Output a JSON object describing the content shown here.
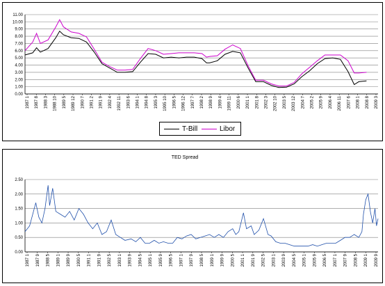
{
  "chart_data": [
    {
      "type": "line",
      "title": "",
      "ylim": [
        0,
        11
      ],
      "y_ticks": [
        "0.00",
        "1.00",
        "2.00",
        "3.00",
        "4.00",
        "5.00",
        "6.00",
        "7.00",
        "8.00",
        "9.00",
        "10.00",
        "11.00"
      ],
      "x_tick_labels": [
        "1987 1",
        "1987 8",
        "1988 3",
        "1988 10",
        "1989 5",
        "1989 12",
        "1990 7",
        "1991 2",
        "1991 9",
        "1992 4",
        "1992 11",
        "1993 6",
        "1994 1",
        "1994 8",
        "1995 3",
        "1995 10",
        "1996 5",
        "1996 12",
        "1997 7",
        "1998 2",
        "1998 9",
        "1999 4",
        "1999 11",
        "2000 6",
        "2001 1",
        "2001 8",
        "2002 3",
        "2002 10",
        "2003 5",
        "2003 12",
        "2004 7",
        "2005 2",
        "2005 9",
        "2006 4",
        "2006 11",
        "2007 6",
        "2008 1",
        "2008 8",
        "2009 3"
      ],
      "legend_position": "bottom",
      "series": [
        {
          "name": "T-Bill",
          "color": "#000000",
          "points": [
            [
              1987.0,
              5.4
            ],
            [
              1987.5,
              5.7
            ],
            [
              1987.75,
              6.4
            ],
            [
              1988.0,
              5.8
            ],
            [
              1988.5,
              6.3
            ],
            [
              1989.0,
              7.8
            ],
            [
              1989.25,
              8.7
            ],
            [
              1989.5,
              8.2
            ],
            [
              1990.0,
              7.8
            ],
            [
              1990.5,
              7.7
            ],
            [
              1991.0,
              7.2
            ],
            [
              1991.5,
              5.8
            ],
            [
              1992.0,
              4.2
            ],
            [
              1992.5,
              3.6
            ],
            [
              1993.0,
              3.0
            ],
            [
              1993.5,
              3.0
            ],
            [
              1994.0,
              3.1
            ],
            [
              1994.5,
              4.4
            ],
            [
              1995.0,
              5.6
            ],
            [
              1995.5,
              5.5
            ],
            [
              1996.0,
              5.0
            ],
            [
              1996.5,
              5.1
            ],
            [
              1997.0,
              5.0
            ],
            [
              1997.5,
              5.1
            ],
            [
              1998.0,
              5.1
            ],
            [
              1998.5,
              4.9
            ],
            [
              1998.8,
              4.3
            ],
            [
              1999.0,
              4.3
            ],
            [
              1999.5,
              4.6
            ],
            [
              2000.0,
              5.5
            ],
            [
              2000.5,
              5.9
            ],
            [
              2001.0,
              5.7
            ],
            [
              2001.5,
              3.6
            ],
            [
              2002.0,
              1.7
            ],
            [
              2002.5,
              1.7
            ],
            [
              2003.0,
              1.2
            ],
            [
              2003.5,
              0.9
            ],
            [
              2004.0,
              0.95
            ],
            [
              2004.5,
              1.4
            ],
            [
              2005.0,
              2.4
            ],
            [
              2005.5,
              3.2
            ],
            [
              2006.0,
              4.2
            ],
            [
              2006.5,
              4.9
            ],
            [
              2007.0,
              5.0
            ],
            [
              2007.5,
              4.8
            ],
            [
              2008.0,
              3.1
            ],
            [
              2008.4,
              1.3
            ],
            [
              2008.7,
              1.7
            ],
            [
              2009.2,
              1.8
            ]
          ]
        },
        {
          "name": "Libor",
          "color": "#cc00cc",
          "points": [
            [
              1987.0,
              6.0
            ],
            [
              1987.5,
              7.2
            ],
            [
              1987.75,
              8.4
            ],
            [
              1988.0,
              7.0
            ],
            [
              1988.5,
              7.5
            ],
            [
              1989.0,
              9.3
            ],
            [
              1989.25,
              10.3
            ],
            [
              1989.5,
              9.3
            ],
            [
              1990.0,
              8.6
            ],
            [
              1990.5,
              8.4
            ],
            [
              1991.0,
              7.9
            ],
            [
              1991.5,
              6.2
            ],
            [
              1992.0,
              4.4
            ],
            [
              1992.5,
              3.8
            ],
            [
              1993.0,
              3.3
            ],
            [
              1993.5,
              3.3
            ],
            [
              1994.0,
              3.4
            ],
            [
              1994.5,
              4.9
            ],
            [
              1995.0,
              6.3
            ],
            [
              1995.5,
              6.0
            ],
            [
              1996.0,
              5.5
            ],
            [
              1996.5,
              5.6
            ],
            [
              1997.0,
              5.7
            ],
            [
              1997.5,
              5.7
            ],
            [
              1998.0,
              5.7
            ],
            [
              1998.5,
              5.6
            ],
            [
              1998.8,
              5.1
            ],
            [
              1999.0,
              5.2
            ],
            [
              1999.5,
              5.3
            ],
            [
              2000.0,
              6.2
            ],
            [
              2000.5,
              6.8
            ],
            [
              2001.0,
              6.3
            ],
            [
              2001.5,
              3.9
            ],
            [
              2002.0,
              1.9
            ],
            [
              2002.5,
              1.9
            ],
            [
              2003.0,
              1.4
            ],
            [
              2003.5,
              1.1
            ],
            [
              2004.0,
              1.1
            ],
            [
              2004.5,
              1.6
            ],
            [
              2005.0,
              2.8
            ],
            [
              2005.5,
              3.7
            ],
            [
              2006.0,
              4.6
            ],
            [
              2006.5,
              5.4
            ],
            [
              2007.0,
              5.4
            ],
            [
              2007.5,
              5.4
            ],
            [
              2008.0,
              4.6
            ],
            [
              2008.4,
              2.9
            ],
            [
              2008.7,
              2.9
            ],
            [
              2009.2,
              3.0
            ]
          ]
        }
      ]
    },
    {
      "type": "line",
      "title": "TED Spread",
      "ylim": [
        0,
        2.5
      ],
      "y_ticks": [
        "0.00",
        "0.50",
        "1.00",
        "1.50",
        "2.00",
        "2.50"
      ],
      "x_tick_labels": [
        "1987 1",
        "1987 9",
        "1988 5",
        "1989 1",
        "1989 9",
        "1990 5",
        "1991 1",
        "1991 9",
        "1992 5",
        "1993 1",
        "1993 9",
        "1994 5",
        "1995 1",
        "1995 9",
        "1996 5",
        "1997 1",
        "1997 9",
        "1998 5",
        "1999 1",
        "1999 9",
        "2000 5",
        "2001 1",
        "2001 9",
        "2002 5",
        "2003 1",
        "2003 9",
        "2004 5",
        "2005 1",
        "2005 9",
        "2006 5",
        "2007 1",
        "2007 9",
        "2008 5",
        "2009 1",
        "2009 9"
      ],
      "series": [
        {
          "name": "TED Spread",
          "color": "#1f4faa",
          "points": [
            [
              1987.0,
              0.7
            ],
            [
              1987.3,
              0.9
            ],
            [
              1987.5,
              1.3
            ],
            [
              1987.7,
              1.7
            ],
            [
              1987.9,
              1.2
            ],
            [
              1988.1,
              1.0
            ],
            [
              1988.3,
              1.5
            ],
            [
              1988.5,
              2.3
            ],
            [
              1988.6,
              1.6
            ],
            [
              1988.8,
              2.2
            ],
            [
              1989.0,
              1.4
            ],
            [
              1989.3,
              1.3
            ],
            [
              1989.6,
              1.2
            ],
            [
              1989.9,
              1.4
            ],
            [
              1990.2,
              1.1
            ],
            [
              1990.5,
              1.5
            ],
            [
              1990.8,
              1.3
            ],
            [
              1991.1,
              1.0
            ],
            [
              1991.4,
              0.8
            ],
            [
              1991.7,
              1.0
            ],
            [
              1992.0,
              0.6
            ],
            [
              1992.3,
              0.7
            ],
            [
              1992.6,
              1.1
            ],
            [
              1992.9,
              0.6
            ],
            [
              1993.2,
              0.5
            ],
            [
              1993.5,
              0.4
            ],
            [
              1993.9,
              0.45
            ],
            [
              1994.2,
              0.35
            ],
            [
              1994.5,
              0.5
            ],
            [
              1994.8,
              0.3
            ],
            [
              1995.1,
              0.3
            ],
            [
              1995.4,
              0.4
            ],
            [
              1995.7,
              0.3
            ],
            [
              1996.0,
              0.35
            ],
            [
              1996.3,
              0.3
            ],
            [
              1996.6,
              0.3
            ],
            [
              1996.9,
              0.5
            ],
            [
              1997.2,
              0.45
            ],
            [
              1997.5,
              0.55
            ],
            [
              1997.8,
              0.6
            ],
            [
              1998.1,
              0.45
            ],
            [
              1998.4,
              0.5
            ],
            [
              1998.7,
              0.55
            ],
            [
              1999.0,
              0.6
            ],
            [
              1999.3,
              0.5
            ],
            [
              1999.6,
              0.6
            ],
            [
              1999.9,
              0.5
            ],
            [
              2000.2,
              0.7
            ],
            [
              2000.5,
              0.8
            ],
            [
              2000.7,
              0.6
            ],
            [
              2000.9,
              0.7
            ],
            [
              2001.2,
              1.35
            ],
            [
              2001.4,
              0.8
            ],
            [
              2001.7,
              0.9
            ],
            [
              2001.9,
              0.6
            ],
            [
              2002.2,
              0.75
            ],
            [
              2002.5,
              1.15
            ],
            [
              2002.8,
              0.6
            ],
            [
              2003.0,
              0.55
            ],
            [
              2003.3,
              0.35
            ],
            [
              2003.6,
              0.3
            ],
            [
              2003.9,
              0.3
            ],
            [
              2004.2,
              0.25
            ],
            [
              2004.5,
              0.2
            ],
            [
              2004.8,
              0.2
            ],
            [
              2005.1,
              0.2
            ],
            [
              2005.4,
              0.2
            ],
            [
              2005.7,
              0.25
            ],
            [
              2006.0,
              0.2
            ],
            [
              2006.3,
              0.25
            ],
            [
              2006.6,
              0.3
            ],
            [
              2006.9,
              0.3
            ],
            [
              2007.2,
              0.3
            ],
            [
              2007.5,
              0.4
            ],
            [
              2007.8,
              0.5
            ],
            [
              2008.1,
              0.5
            ],
            [
              2008.4,
              0.6
            ],
            [
              2008.7,
              0.5
            ],
            [
              2008.9,
              0.7
            ],
            [
              2009.0,
              1.3
            ],
            [
              2009.15,
              1.8
            ],
            [
              2009.3,
              2.0
            ],
            [
              2009.45,
              1.4
            ],
            [
              2009.6,
              1.0
            ],
            [
              2009.75,
              1.5
            ],
            [
              2009.85,
              0.9
            ],
            [
              2009.95,
              1.15
            ]
          ]
        }
      ]
    }
  ]
}
